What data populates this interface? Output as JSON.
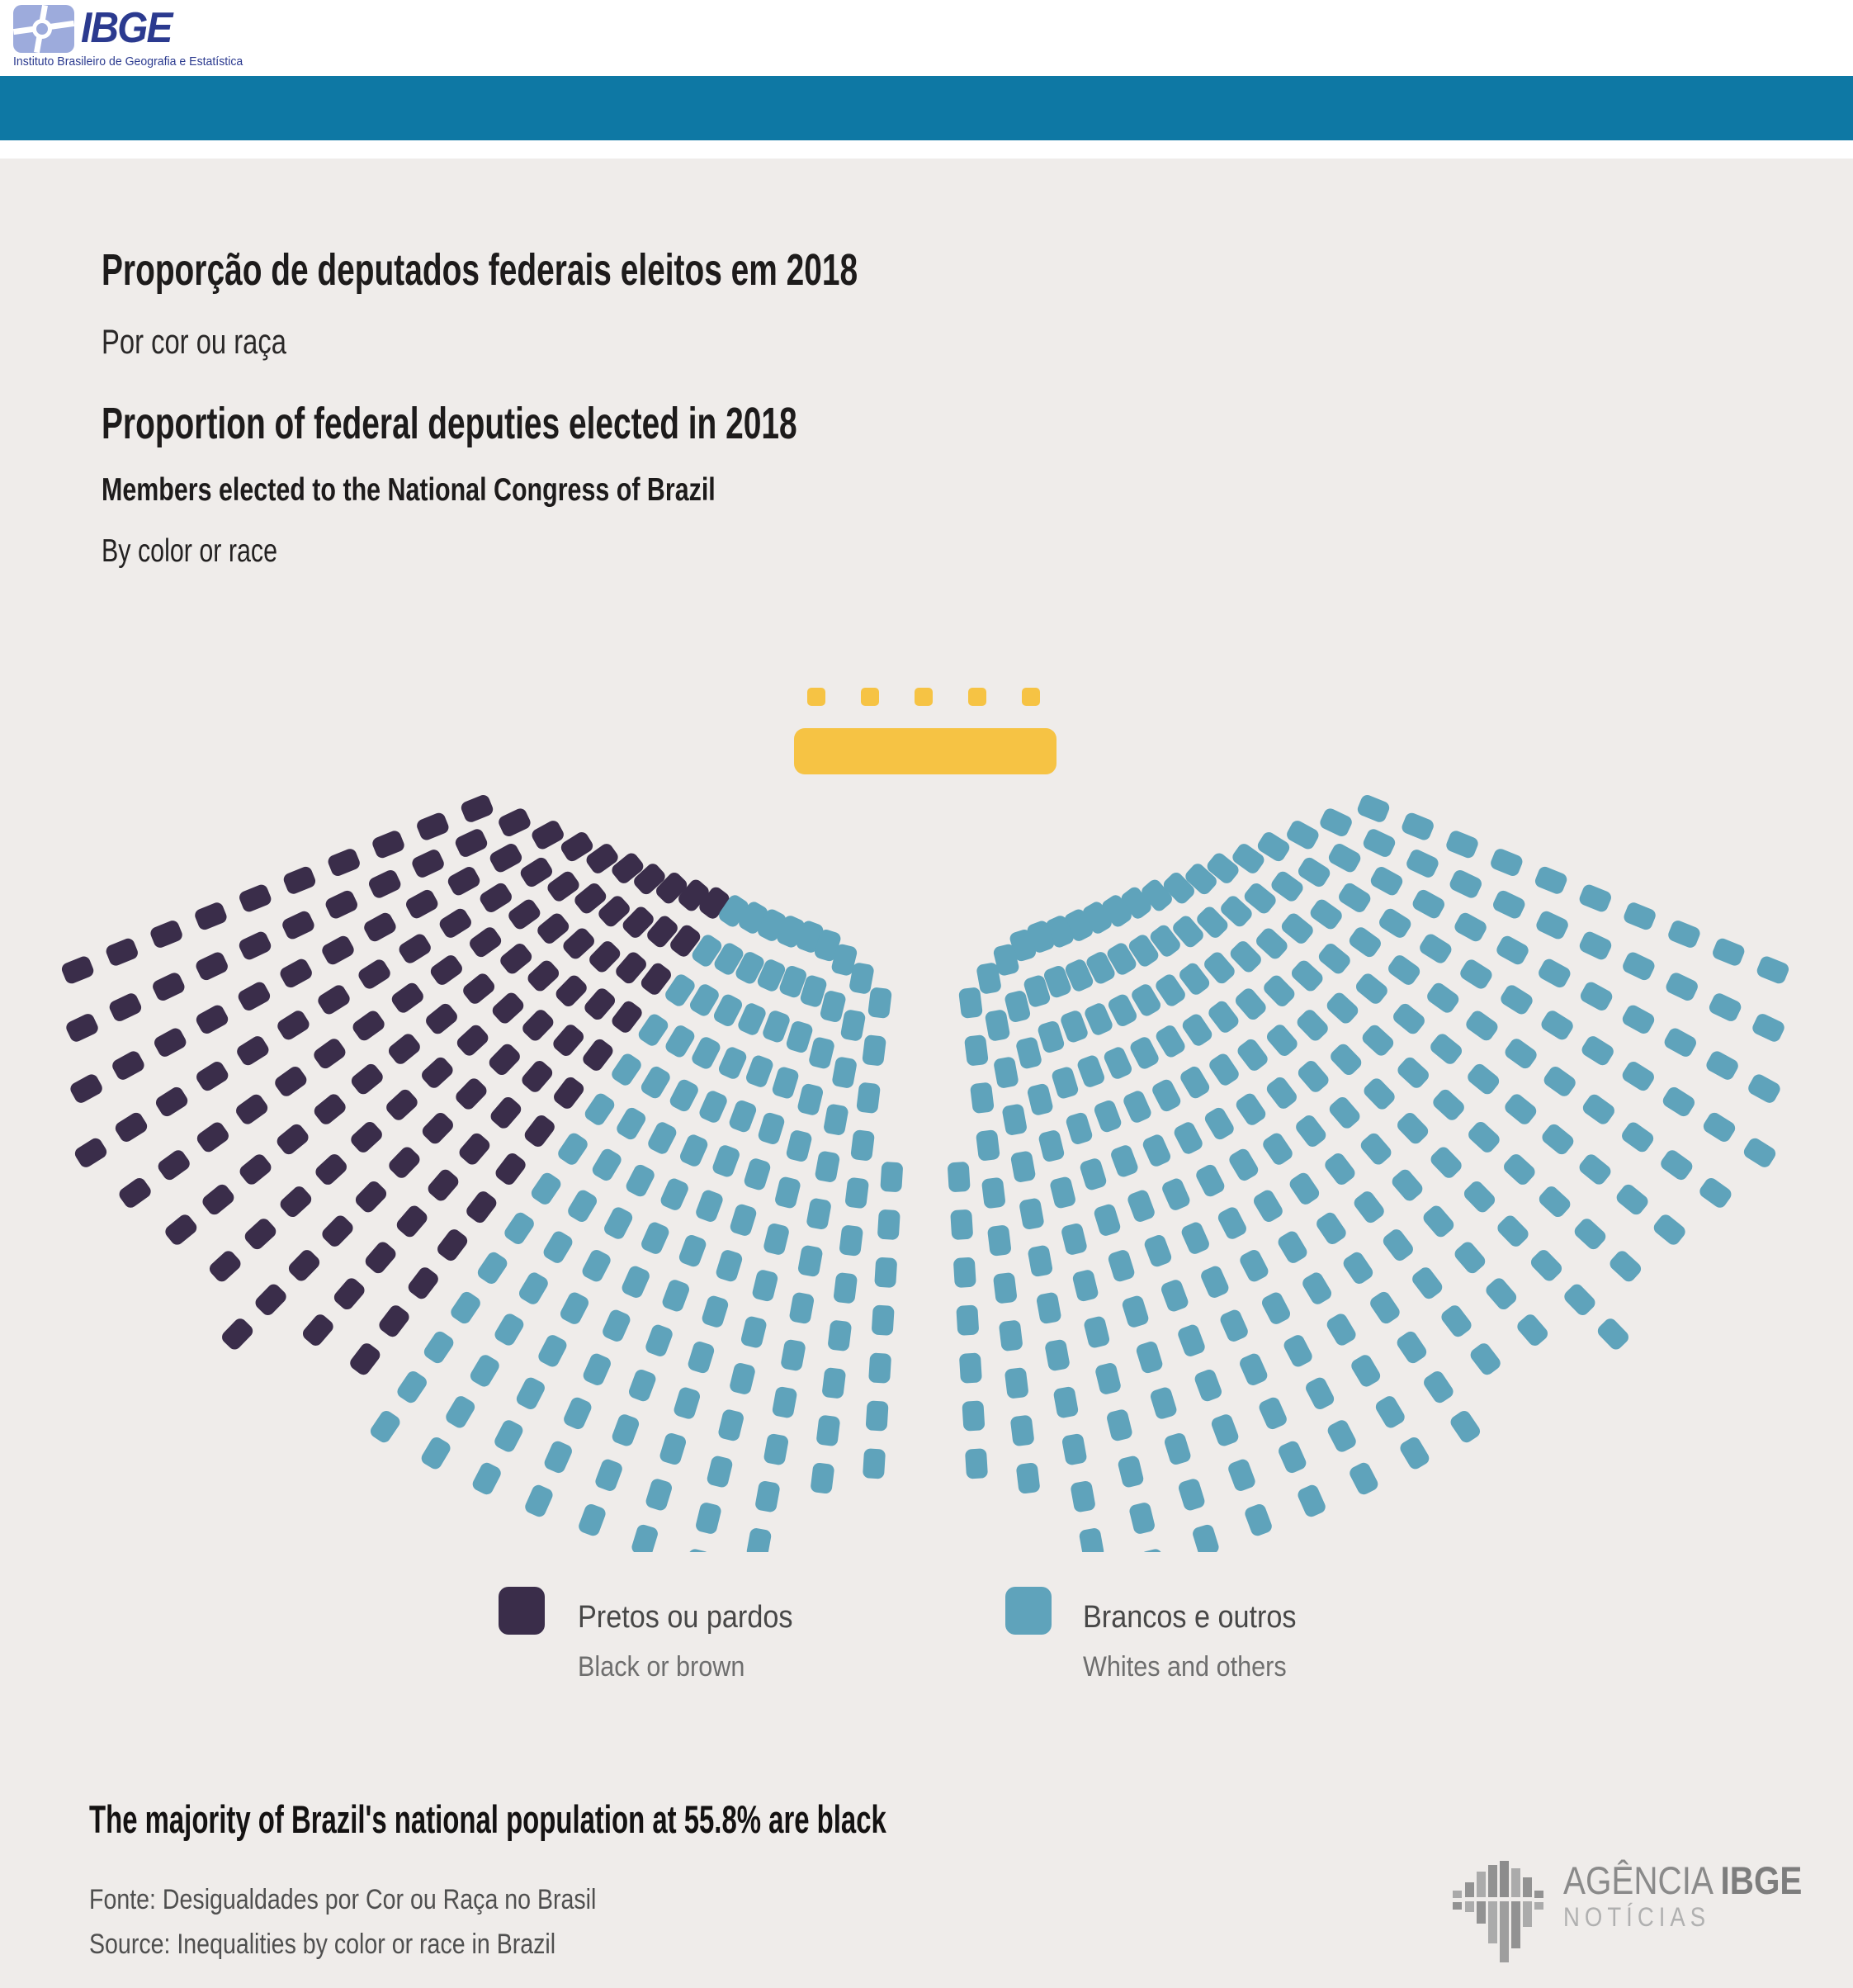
{
  "page": {
    "bg": "#efecea",
    "band_color": "#0e78a4"
  },
  "ibge_logo": {
    "acronym": "IBGE",
    "subtitle": "Instituto Brasileiro de Geografia e Estatística",
    "navy": "#2b3a8f",
    "periwinkle": "#9dabdc"
  },
  "titles": {
    "pt_title": "Proporção de deputados federais eleitos em 2018",
    "pt_subtitle": "Por cor ou raça",
    "en_title": "Proportion of federal deputies elected in 2018",
    "en_subtitle_bold": "Members elected to the National Congress of Brazil",
    "en_subtitle": "By color or race"
  },
  "chart_data": {
    "type": "parliament",
    "note": "Hemicycle seat map of the National Congress of Brazil (Chamber of Deputies) — deputies elected in 2018, by color or race; no numeric labels are printed on the chart, seat counts estimated from the drawn dots",
    "total_seats": 513,
    "series": [
      {
        "label_pt": "Pretos ou pardos",
        "label_en": "Black or brown",
        "seats": 125,
        "color": "#3a2d4a"
      },
      {
        "label_pt": "Brancos e outros",
        "label_en": "Whites and others",
        "seats": 383,
        "color": "#5fa3bb"
      }
    ],
    "mesa": {
      "label": "speaker-table-seats",
      "seats": 5,
      "color": "#f6c344"
    },
    "layout_hint": "fan of radial seat columns opening downward, centre aisle gap, dark seats fill the outer left wing; yellow table and 5 yellow seats at top centre",
    "legend_position": "bottom"
  },
  "footer": {
    "headline": "The majority of Brazil's national population at 55.8% are black",
    "fonte": "Fonte: Desigualdades por Cor ou Raça no Brasil",
    "source": "Source: Inequalities by color or race in Brazil"
  },
  "agencia_logo": {
    "word1": "AGÊNCIA",
    "word2": "IBGE",
    "word3": "NOTÍCIAS"
  }
}
